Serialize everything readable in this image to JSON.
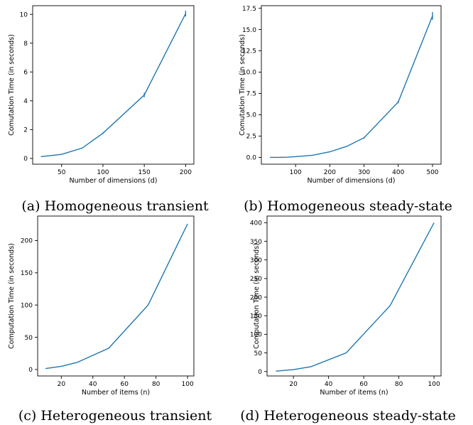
{
  "figure": {
    "captions": [
      "(a) Homogeneous transient",
      "(b) Homogeneous steady-state",
      "(c) Heterogeneous transient",
      "(d) Heterogeneous steady-state"
    ]
  },
  "chart_data": [
    {
      "type": "line",
      "title": "",
      "xlabel": "Number of dimensions (d)",
      "ylabel": "Comutation Time (in seconds)",
      "xlim": [
        15,
        210
      ],
      "ylim": [
        -0.4,
        10.6
      ],
      "xticks": [
        50,
        100,
        150,
        200
      ],
      "yticks": [
        0,
        2,
        4,
        6,
        8,
        10
      ],
      "ytick_labels": [
        "0",
        "2",
        "4",
        "6",
        "8",
        "10"
      ],
      "grid": false,
      "series": [
        {
          "color": "#1f77b4",
          "x": [
            25,
            50,
            75,
            100,
            150,
            200
          ],
          "y": [
            0.12,
            0.28,
            0.72,
            1.75,
            4.4,
            10.05
          ],
          "yerr": [
            0.0,
            0.0,
            0.0,
            0.05,
            0.15,
            0.2
          ]
        }
      ]
    },
    {
      "type": "line",
      "title": "",
      "xlabel": "Number of dimensions (d)",
      "ylabel": "Comutation Time (in seconds)",
      "xlim": [
        0,
        525
      ],
      "ylim": [
        -0.8,
        17.8
      ],
      "xticks": [
        100,
        200,
        300,
        400,
        500
      ],
      "yticks": [
        0,
        2.5,
        5,
        7.5,
        10,
        12.5,
        15,
        17.5
      ],
      "ytick_labels": [
        "0.0",
        "2.5",
        "5.0",
        "7.5",
        "10.0",
        "12.5",
        "15.0",
        "17.5"
      ],
      "grid": false,
      "series": [
        {
          "color": "#1f77b4",
          "x": [
            25,
            50,
            75,
            100,
            150,
            200,
            250,
            300,
            400,
            500
          ],
          "y": [
            0.0,
            0.0,
            0.02,
            0.08,
            0.25,
            0.65,
            1.3,
            2.3,
            6.5,
            16.6
          ],
          "yerr": [
            0,
            0,
            0,
            0,
            0,
            0,
            0,
            0.1,
            0.15,
            0.45
          ]
        }
      ]
    },
    {
      "type": "line",
      "title": "",
      "xlabel": "Number of items (n)",
      "ylabel": "Computation Time (in seconds)",
      "xlim": [
        5,
        104
      ],
      "ylim": [
        -10,
        238
      ],
      "xticks": [
        20,
        40,
        60,
        80,
        100
      ],
      "yticks": [
        0,
        50,
        100,
        150,
        200
      ],
      "ytick_labels": [
        "0",
        "50",
        "100",
        "150",
        "200"
      ],
      "grid": false,
      "series": [
        {
          "color": "#1f77b4",
          "x": [
            10,
            20,
            30,
            50,
            75,
            100
          ],
          "y": [
            1.5,
            5,
            11,
            33,
            100,
            226
          ],
          "yerr": [
            0,
            0,
            0,
            0,
            0,
            0
          ]
        }
      ]
    },
    {
      "type": "line",
      "title": "",
      "xlabel": "Number of items (n)",
      "ylabel": "Computation Time (in seconds)",
      "xlim": [
        5,
        104
      ],
      "ylim": [
        -12,
        418
      ],
      "xticks": [
        20,
        40,
        60,
        80,
        100
      ],
      "yticks": [
        0,
        50,
        100,
        150,
        200,
        250,
        300,
        350,
        400
      ],
      "ytick_labels": [
        "0",
        "50",
        "100",
        "150",
        "200",
        "250",
        "300",
        "350",
        "400"
      ],
      "grid": false,
      "series": [
        {
          "color": "#1f77b4",
          "x": [
            10,
            20,
            30,
            50,
            75,
            100
          ],
          "y": [
            1,
            5,
            13,
            50,
            177,
            400
          ],
          "yerr": [
            0,
            0,
            0,
            0,
            0,
            0
          ]
        }
      ]
    }
  ]
}
